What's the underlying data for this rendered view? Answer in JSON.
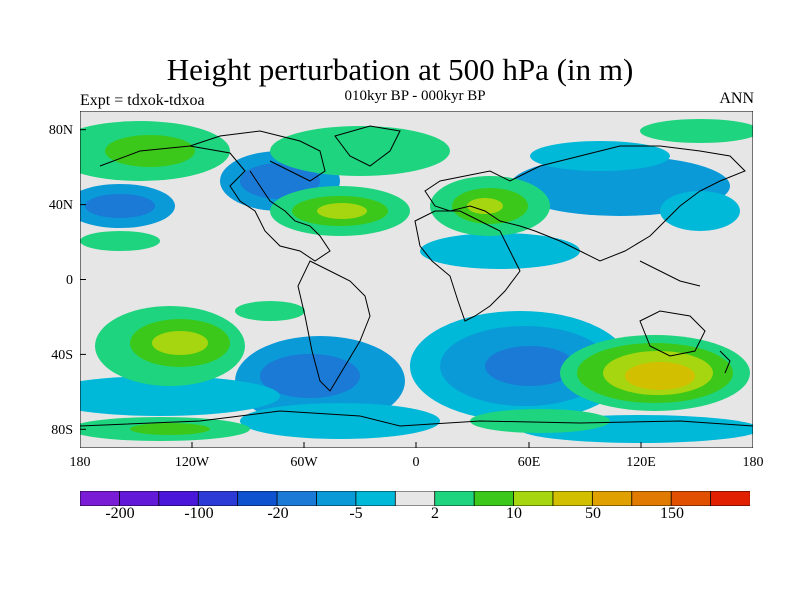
{
  "title": "Height perturbation at 500 hPa (in m)",
  "subtitle": "010kyr BP - 000kyr BP",
  "experiment": "Expt = tdxok-tdxoa",
  "season": "ANN",
  "map": {
    "projection": "cylindrical equidistant",
    "lat_range": [
      -90,
      90
    ],
    "lon_range": [
      -180,
      180
    ],
    "background_color": "#e6e6e6",
    "coastline_color": "#000000",
    "lat_ticks": [
      "80N",
      "40N",
      "0",
      "40S",
      "80S"
    ],
    "lon_ticks": [
      "180",
      "120W",
      "60W",
      "0",
      "60E",
      "120E",
      "180"
    ]
  },
  "colorbar": {
    "colors": [
      "#7a1cd6",
      "#6219d8",
      "#4a17da",
      "#2d3bd6",
      "#0f52d0",
      "#1a7ad6",
      "#0a9ad8",
      "#00b8d8",
      "#e6e6e6",
      "#1ed47f",
      "#3cc81a",
      "#a6d60f",
      "#d2c000",
      "#e0a000",
      "#e07a00",
      "#e05000",
      "#e02000"
    ],
    "tick_labels": [
      "-200",
      "-100",
      "-20",
      "-5",
      "2",
      "10",
      "50",
      "150"
    ]
  }
}
